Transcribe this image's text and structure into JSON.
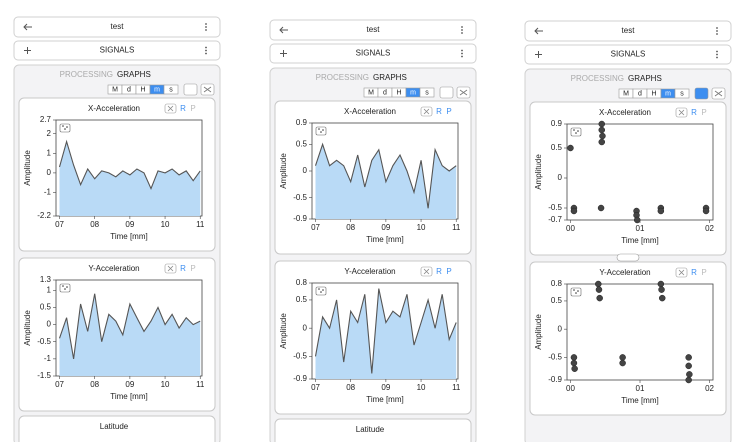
{
  "panels": [
    {
      "header": {
        "title": "test"
      },
      "signals": {
        "label": "SIGNALS"
      },
      "tabs": [
        "PROCESSING",
        "GRAPHS"
      ],
      "time_buttons": [
        "M",
        "d",
        "H",
        "m",
        "s"
      ],
      "selected_time": 3,
      "charts": [
        {
          "type": "line",
          "title": "X-Acceleration",
          "toggles": [
            "R",
            "P"
          ],
          "y_label": "Amplitude",
          "x_label": "Time [mm]",
          "color": "#555555",
          "fill": "#b9daf6",
          "x": [
            7,
            7.2,
            7.4,
            7.6,
            7.8,
            8,
            8.2,
            8.4,
            8.6,
            8.8,
            9,
            9.2,
            9.4,
            9.6,
            9.8,
            10,
            10.2,
            10.4,
            10.6,
            10.8,
            11
          ],
          "values": [
            0.3,
            1.6,
            0.4,
            -0.6,
            0.2,
            -0.3,
            0.1,
            0.0,
            -0.2,
            0.1,
            -0.1,
            0.2,
            0.0,
            -0.8,
            0.1,
            0.0,
            0.2,
            -0.1,
            0.1,
            -0.4,
            0.1
          ],
          "xlim": [
            6.9,
            11.05
          ],
          "xticks": [
            {
              "value": 7,
              "label": "07"
            },
            {
              "value": 8,
              "label": "08"
            },
            {
              "value": 9,
              "label": "09"
            },
            {
              "value": 10,
              "label": "10"
            },
            {
              "value": 11,
              "label": "11"
            }
          ],
          "ylim": [
            -2.2,
            2.7
          ],
          "yticks": [
            2.7,
            2,
            1,
            0,
            -1,
            -2.2
          ]
        },
        {
          "type": "line",
          "title": "Y-Acceleration",
          "toggles": [
            "R",
            "P"
          ],
          "y_label": "Amplitude",
          "x_label": "Time [mm]",
          "color": "#555555",
          "fill": "#b9daf6",
          "x": [
            7,
            7.2,
            7.4,
            7.6,
            7.8,
            8,
            8.2,
            8.4,
            8.6,
            8.8,
            9,
            9.2,
            9.4,
            9.6,
            9.8,
            10,
            10.2,
            10.4,
            10.6,
            10.8,
            11
          ],
          "values": [
            -0.4,
            0.2,
            -1.0,
            0.6,
            -0.2,
            0.9,
            -0.5,
            0.3,
            0.1,
            -0.3,
            0.6,
            0.2,
            -0.2,
            0.1,
            0.5,
            0.0,
            0.3,
            -0.1,
            0.2,
            0.0,
            0.1
          ],
          "xlim": [
            6.9,
            11.05
          ],
          "xticks": [
            {
              "value": 7,
              "label": "07"
            },
            {
              "value": 8,
              "label": "08"
            },
            {
              "value": 9,
              "label": "09"
            },
            {
              "value": 10,
              "label": "10"
            },
            {
              "value": 11,
              "label": "11"
            }
          ],
          "ylim": [
            -1.5,
            1.3
          ],
          "yticks": [
            1.3,
            1,
            0.5,
            0,
            -0.5,
            -1,
            -1.5
          ]
        }
      ],
      "next_card": "Latitude"
    },
    {
      "header": {
        "title": "test"
      },
      "signals": {
        "label": "SIGNALS"
      },
      "tabs": [
        "PROCESSING",
        "GRAPHS"
      ],
      "time_buttons": [
        "M",
        "d",
        "H",
        "m",
        "s"
      ],
      "selected_time": 3,
      "charts": [
        {
          "type": "line",
          "title": "X-Acceleration",
          "toggles": [
            "R",
            "P"
          ],
          "y_label": "Amplitude",
          "x_label": "Time [mm]",
          "color": "#555555",
          "fill": "#b9daf6",
          "x": [
            7,
            7.2,
            7.4,
            7.6,
            7.8,
            8,
            8.2,
            8.4,
            8.6,
            8.8,
            9,
            9.2,
            9.4,
            9.6,
            9.8,
            10,
            10.2,
            10.4,
            10.6,
            10.8,
            11
          ],
          "values": [
            0.1,
            0.5,
            0.1,
            0.2,
            0.1,
            -0.2,
            0.3,
            -0.3,
            0.2,
            0.4,
            -0.2,
            0.1,
            0.3,
            0.0,
            -0.4,
            0.2,
            -0.7,
            0.4,
            0.1,
            0.0,
            0.1
          ],
          "xlim": [
            6.9,
            11.05
          ],
          "xticks": [
            {
              "value": 7,
              "label": "07"
            },
            {
              "value": 8,
              "label": "08"
            },
            {
              "value": 9,
              "label": "09"
            },
            {
              "value": 10,
              "label": "10"
            },
            {
              "value": 11,
              "label": "11"
            }
          ],
          "ylim": [
            -0.9,
            0.9
          ],
          "yticks": [
            0.9,
            0.5,
            0,
            -0.5,
            -0.9
          ]
        },
        {
          "type": "line",
          "title": "Y-Acceleration",
          "toggles": [
            "R",
            "P"
          ],
          "y_label": "Amplitude",
          "x_label": "Time [mm]",
          "color": "#555555",
          "fill": "#b9daf6",
          "x": [
            7,
            7.2,
            7.4,
            7.6,
            7.8,
            8,
            8.2,
            8.4,
            8.6,
            8.8,
            9,
            9.2,
            9.4,
            9.6,
            9.8,
            10,
            10.2,
            10.4,
            10.6,
            10.8,
            11
          ],
          "values": [
            -0.5,
            0.2,
            0.0,
            0.5,
            -0.6,
            0.3,
            0.1,
            0.6,
            -0.8,
            0.7,
            0.1,
            0.3,
            0.2,
            0.6,
            -0.3,
            0.1,
            0.5,
            0.0,
            0.6,
            -0.2,
            0.1
          ],
          "xlim": [
            6.9,
            11.05
          ],
          "xticks": [
            {
              "value": 7,
              "label": "07"
            },
            {
              "value": 8,
              "label": "08"
            },
            {
              "value": 9,
              "label": "09"
            },
            {
              "value": 10,
              "label": "10"
            },
            {
              "value": 11,
              "label": "11"
            }
          ],
          "ylim": [
            -0.9,
            0.8
          ],
          "yticks": [
            0.8,
            0.5,
            0,
            -0.5,
            -0.9
          ]
        }
      ],
      "next_card": "Latitude"
    },
    {
      "header": {
        "title": "test"
      },
      "signals": {
        "label": "SIGNALS"
      },
      "tabs": [
        "PROCESSING",
        "GRAPHS"
      ],
      "time_buttons": [
        "M",
        "d",
        "H",
        "m",
        "s"
      ],
      "selected_time": 3,
      "charts": [
        {
          "type": "scatter",
          "title": "X-Acceleration",
          "toggles": [
            "R",
            "P"
          ],
          "y_label": "Amplitude",
          "x_label": "Time [mm]",
          "color": "#444444",
          "x": [
            0,
            0.05,
            0.05,
            0.45,
            0.45,
            0.46,
            0.45,
            0.44,
            0.95,
            0.95,
            0.96,
            1.3,
            1.3,
            1.95,
            1.95
          ],
          "values": [
            0.5,
            -0.5,
            -0.55,
            0.9,
            0.8,
            0.7,
            0.6,
            -0.5,
            -0.55,
            -0.62,
            -0.7,
            -0.5,
            -0.55,
            -0.5,
            -0.55
          ],
          "xlim": [
            -0.05,
            2.05
          ],
          "xticks": [
            {
              "value": 0,
              "label": "00"
            },
            {
              "value": 1,
              "label": "01"
            },
            {
              "value": 2,
              "label": "02"
            }
          ],
          "ylim": [
            -0.7,
            0.9
          ],
          "yticks": [
            0.9,
            0.5,
            0,
            -0.5,
            -0.7
          ]
        },
        {
          "type": "scatter",
          "title": "Y-Acceleration",
          "toggles": [
            "R",
            "P"
          ],
          "y_label": "Amplitude",
          "x_label": "Time [mm]",
          "color": "#444444",
          "x": [
            0.05,
            0.05,
            0.06,
            0.4,
            0.41,
            0.42,
            0.75,
            0.75,
            1.3,
            1.31,
            1.32,
            1.7,
            1.7,
            1.71,
            1.7
          ],
          "values": [
            -0.5,
            -0.6,
            -0.7,
            0.8,
            0.7,
            0.55,
            -0.5,
            -0.6,
            0.8,
            0.7,
            0.55,
            -0.5,
            -0.65,
            -0.8,
            -0.9
          ],
          "xlim": [
            -0.05,
            2.05
          ],
          "xticks": [
            {
              "value": 0,
              "label": "00"
            },
            {
              "value": 1,
              "label": "01"
            },
            {
              "value": 2,
              "label": "02"
            }
          ],
          "ylim": [
            -0.9,
            0.8
          ],
          "yticks": [
            0.8,
            0.5,
            0,
            -0.5,
            -0.9
          ]
        }
      ]
    }
  ]
}
